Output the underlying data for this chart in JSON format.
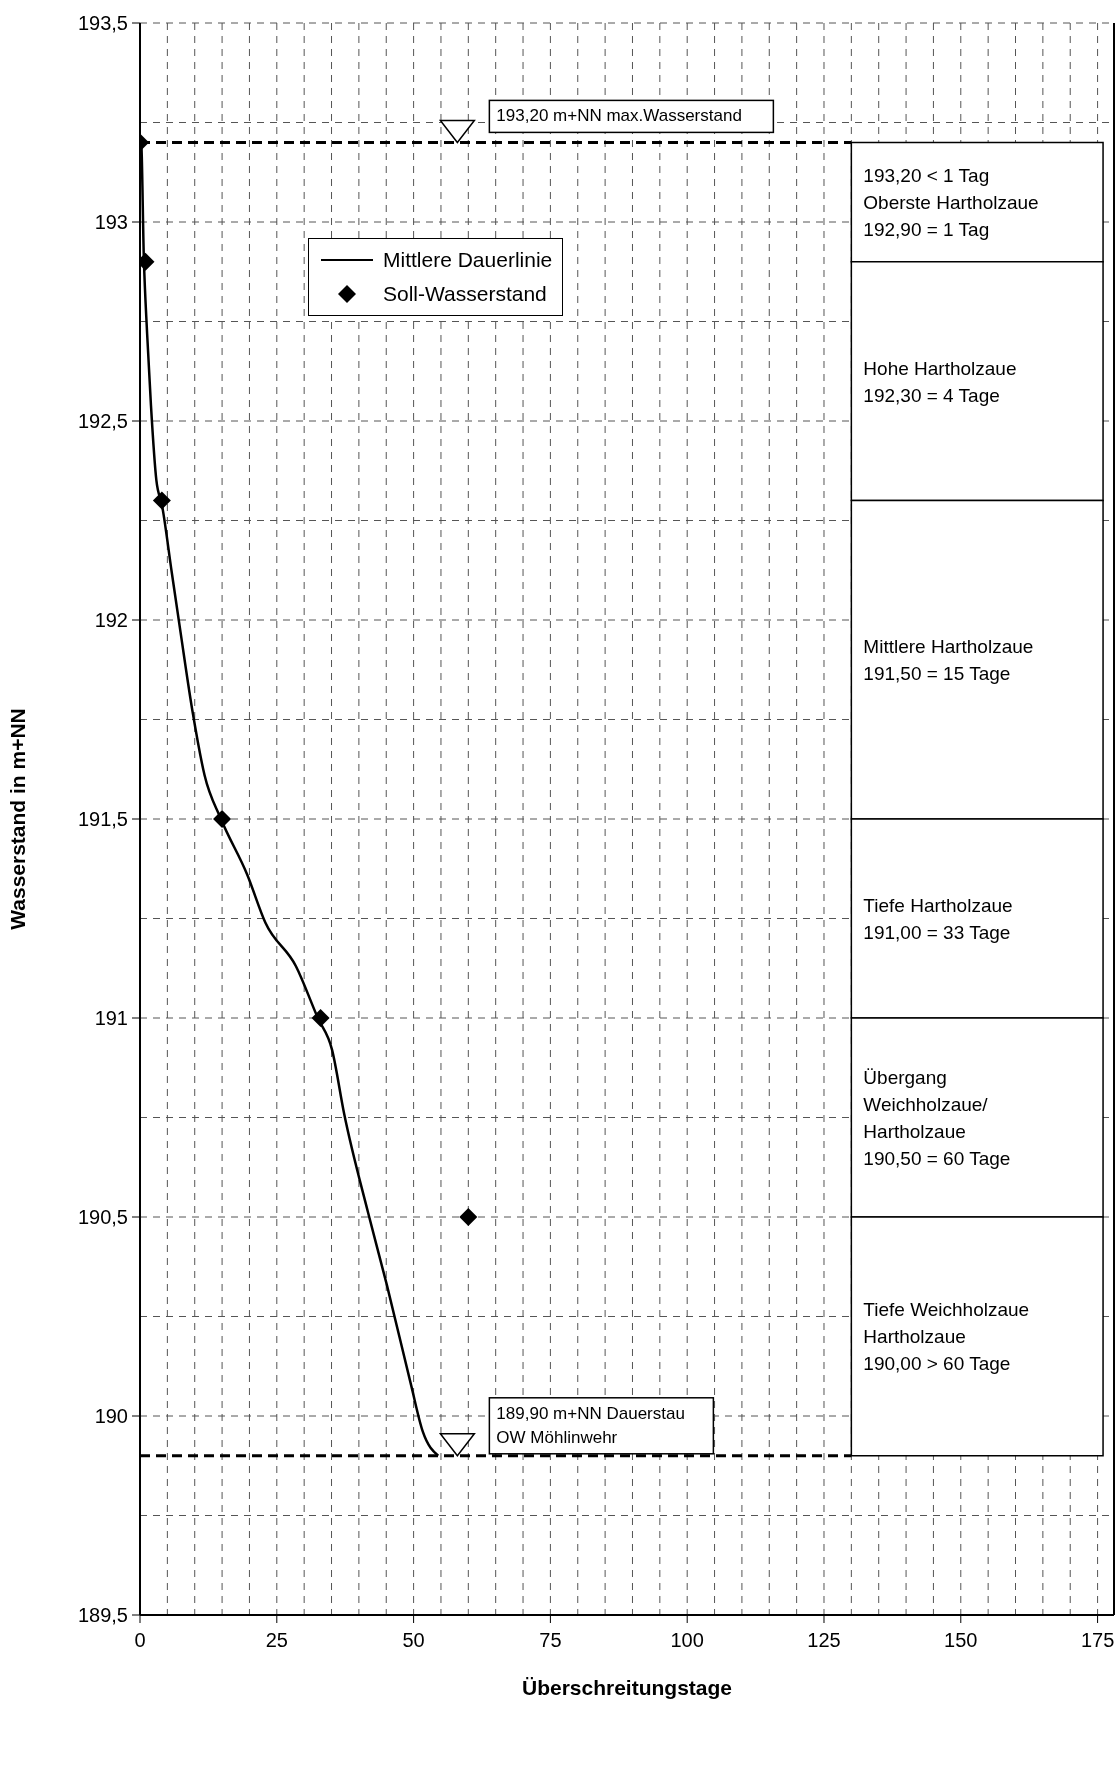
{
  "chart_data": {
    "type": "line",
    "xlabel": "Überschreitungstage",
    "ylabel": "Wasserstand in m+NN",
    "xlim": [
      0,
      178
    ],
    "ylim": [
      189.5,
      193.5
    ],
    "xticks": [
      0,
      {
        "value": 5,
        "label": null
      },
      {
        "value": 10,
        "label": null
      },
      {
        "value": 15,
        "label": null
      },
      {
        "value": 20,
        "label": null
      },
      25,
      {
        "value": 30,
        "label": null
      },
      {
        "value": 35,
        "label": null
      },
      {
        "value": 40,
        "label": null
      },
      {
        "value": 45,
        "label": null
      },
      50,
      {
        "value": 55,
        "label": null
      },
      {
        "value": 60,
        "label": null
      },
      {
        "value": 65,
        "label": null
      },
      {
        "value": 70,
        "label": null
      },
      75,
      {
        "value": 80,
        "label": null
      },
      {
        "value": 85,
        "label": null
      },
      {
        "value": 90,
        "label": null
      },
      {
        "value": 95,
        "label": null
      },
      100,
      {
        "value": 105,
        "label": null
      },
      {
        "value": 110,
        "label": null
      },
      {
        "value": 115,
        "label": null
      },
      {
        "value": 120,
        "label": null
      },
      125,
      {
        "value": 130,
        "label": null
      },
      {
        "value": 135,
        "label": null
      },
      {
        "value": 140,
        "label": null
      },
      {
        "value": 145,
        "label": null
      },
      150,
      {
        "value": 155,
        "label": null
      },
      {
        "value": 160,
        "label": null
      },
      {
        "value": 165,
        "label": null
      },
      {
        "value": 170,
        "label": null
      },
      175
    ],
    "yticks": [
      {
        "value": 189.5,
        "label": "189,5"
      },
      {
        "value": 189.75,
        "label": null
      },
      190,
      {
        "value": 190.25,
        "label": null
      },
      {
        "value": 190.5,
        "label": "190,5"
      },
      {
        "value": 190.75,
        "label": null
      },
      191,
      {
        "value": 191.25,
        "label": null
      },
      {
        "value": 191.5,
        "label": "191,5"
      },
      {
        "value": 191.75,
        "label": null
      },
      192,
      {
        "value": 192.25,
        "label": null
      },
      {
        "value": 192.5,
        "label": "192,5"
      },
      {
        "value": 192.75,
        "label": null
      },
      193,
      {
        "value": 193.25,
        "label": null
      },
      {
        "value": 193.5,
        "label": "193,5"
      }
    ],
    "grid": true,
    "legend": "top left",
    "series": [
      {
        "name": "Mittlere Dauerlinie",
        "type": "line",
        "color": "#000000",
        "marker": "none",
        "line_style": "solid",
        "x": [
          0,
          0.2,
          0.7,
          1.3,
          2.0,
          3.0,
          4.0,
          5.8,
          7.4,
          9.6,
          11.8,
          14.8,
          19.6,
          22.9,
          28.5,
          32.5,
          35.1,
          37.3,
          41.7,
          45.1,
          49.5,
          51.7,
          54.5
        ],
        "values": [
          193.2,
          193.2,
          192.91,
          192.72,
          192.54,
          192.35,
          192.29,
          192.12,
          191.97,
          191.77,
          191.61,
          191.5,
          191.36,
          191.24,
          191.13,
          191.0,
          190.92,
          190.76,
          190.51,
          190.33,
          190.08,
          189.96,
          189.9
        ]
      },
      {
        "name": "Soll-Wasserstand",
        "type": "scatter",
        "color": "#000000",
        "marker": "diamond",
        "x": [
          0,
          1,
          4,
          15,
          33,
          60
        ],
        "values": [
          193.2,
          192.9,
          192.3,
          191.5,
          191.0,
          190.5
        ]
      }
    ],
    "ref_lines": [
      {
        "axis": "y",
        "value": 193.2,
        "label": "193,20 m+NN max.Wasserstand",
        "color": "#000000",
        "line_style": "dashed"
      },
      {
        "axis": "y",
        "value": 189.9,
        "label": "189,90 m+NN Dauerstau\nOW Möhlinwehr",
        "color": "#000000",
        "line_style": "dashed"
      }
    ],
    "bands": [
      {
        "axis": "y",
        "from": 192.9,
        "to": 193.2,
        "label": "193,20 < 1 Tag\nOberste Hartholzaue\n192,90 = 1 Tag",
        "color": "#ffffff"
      },
      {
        "axis": "y",
        "from": 192.3,
        "to": 192.9,
        "label": "Hohe Hartholzaue\n192,30 = 4 Tage",
        "color": "#ffffff"
      },
      {
        "axis": "y",
        "from": 191.5,
        "to": 192.3,
        "label": "Mittlere Hartholzaue\n191,50 = 15 Tage",
        "color": "#ffffff"
      },
      {
        "axis": "y",
        "from": 191.0,
        "to": 191.5,
        "label": "Tiefe Hartholzaue\n191,00 = 33 Tage",
        "color": "#ffffff"
      },
      {
        "axis": "y",
        "from": 190.5,
        "to": 191.0,
        "label": "Übergang\nWeichholzaue/\nHartholzaue\n190,50 = 60 Tage",
        "color": "#ffffff"
      },
      {
        "axis": "y",
        "from": 189.9,
        "to": 190.5,
        "label": "Tiefe Weichholzaue\nHartholzaue\n190,00 > 60 Tage",
        "color": "#ffffff"
      }
    ]
  }
}
